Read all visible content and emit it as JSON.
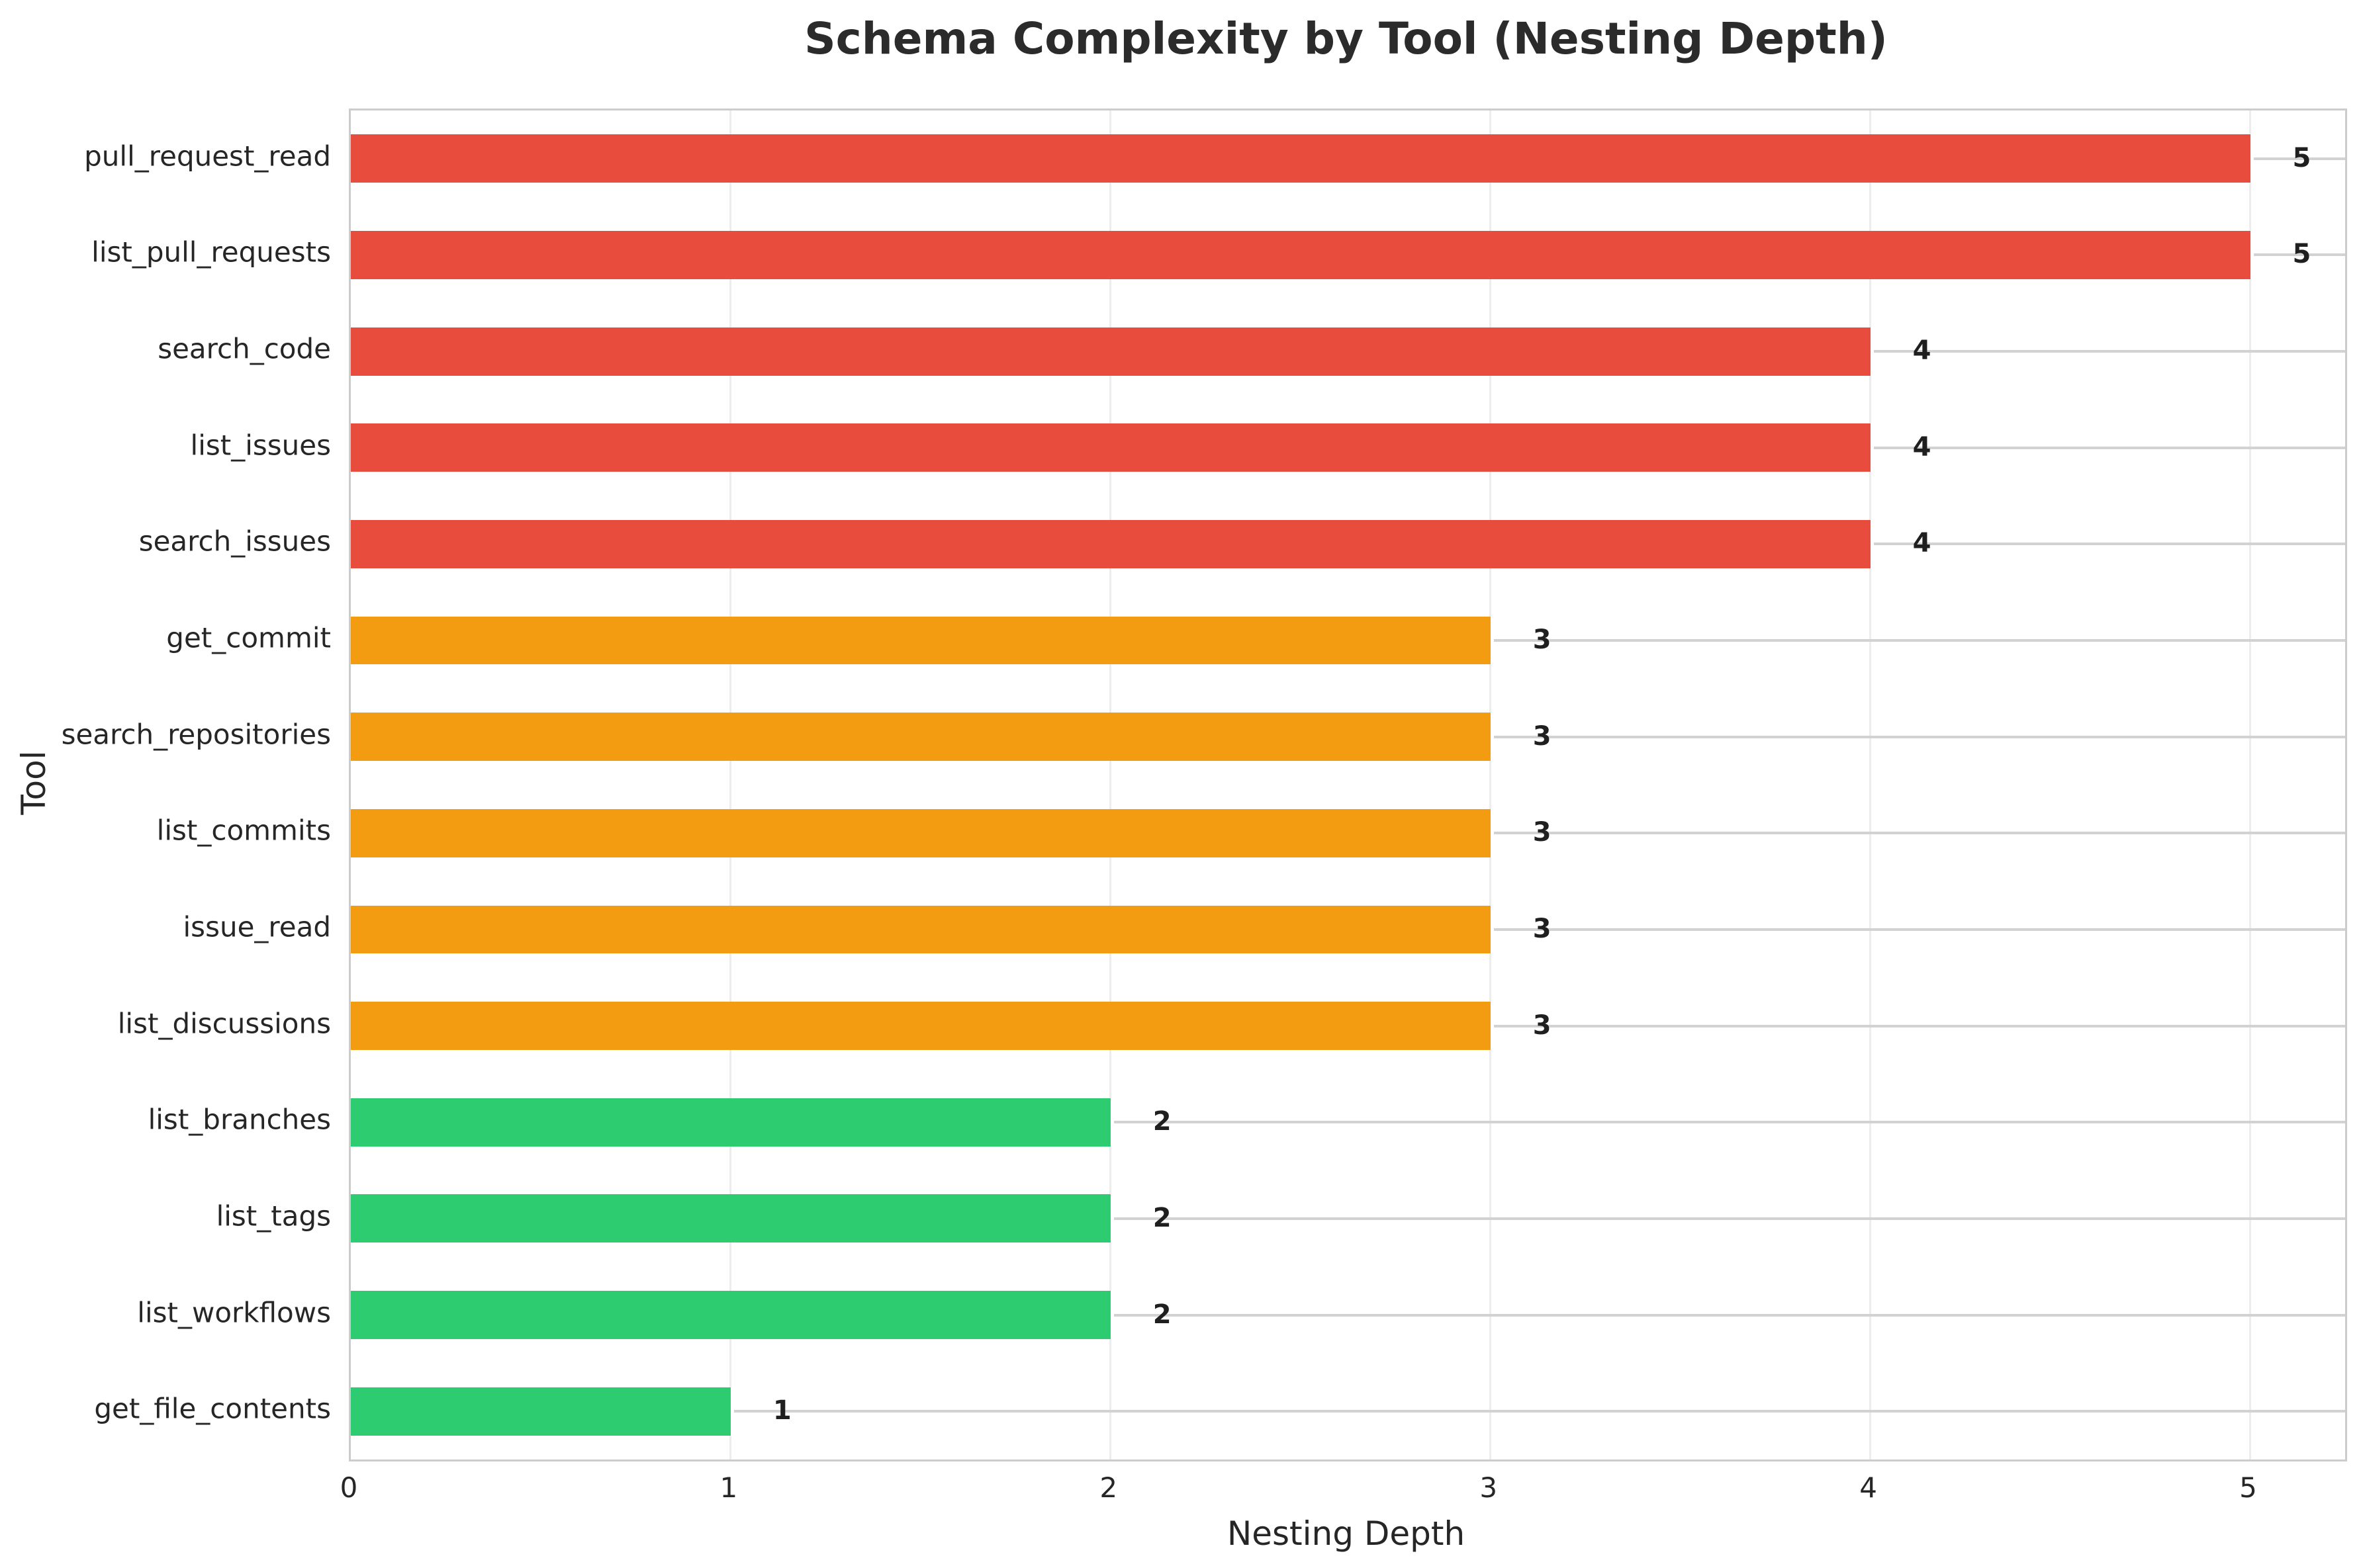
{
  "chart_data": {
    "type": "bar",
    "orientation": "horizontal",
    "title": "Schema Complexity by Tool (Nesting Depth)",
    "xlabel": "Nesting Depth",
    "ylabel": "Tool",
    "categories": [
      "pull_request_read",
      "list_pull_requests",
      "search_code",
      "list_issues",
      "search_issues",
      "get_commit",
      "search_repositories",
      "list_commits",
      "issue_read",
      "list_discussions",
      "list_branches",
      "list_tags",
      "list_workflows",
      "get_file_contents"
    ],
    "values": [
      5,
      5,
      4,
      4,
      4,
      3,
      3,
      3,
      3,
      3,
      2,
      2,
      2,
      1
    ],
    "value_labels": [
      "5",
      "5",
      "4",
      "4",
      "4",
      "3",
      "3",
      "3",
      "3",
      "3",
      "2",
      "2",
      "2",
      "1"
    ],
    "bar_colors": [
      "#e74c3c",
      "#e74c3c",
      "#e74c3c",
      "#e74c3c",
      "#e74c3c",
      "#f39c12",
      "#f39c12",
      "#f39c12",
      "#f39c12",
      "#f39c12",
      "#2ecc71",
      "#2ecc71",
      "#2ecc71",
      "#2ecc71"
    ],
    "color_legend": {
      "high_depth_4_5": "#e74c3c",
      "medium_depth_3": "#f39c12",
      "low_depth_1_2": "#2ecc71"
    },
    "x_ticks": [
      "0",
      "1",
      "2",
      "3",
      "4",
      "5"
    ],
    "xlim": [
      0,
      5.25
    ],
    "bar_fraction": 0.5,
    "grid": true,
    "legend_position": "none"
  }
}
